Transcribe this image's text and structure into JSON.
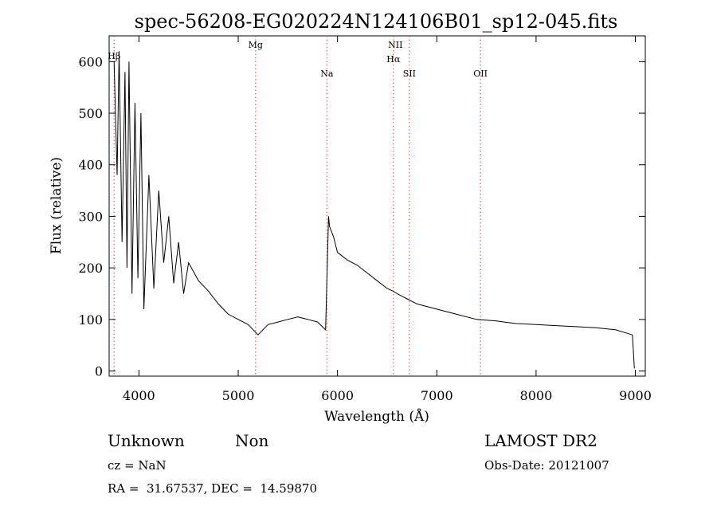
{
  "chart_data": {
    "type": "line",
    "title": "spec-56208-EG020224N124106B01_sp12-045.fits",
    "xlabel": "Wavelength (Å)",
    "ylabel": "Flux (relative)",
    "xlim": [
      3700,
      9100
    ],
    "ylim": [
      -10,
      650
    ],
    "xticks": [
      4000,
      5000,
      6000,
      7000,
      8000,
      9000
    ],
    "yticks": [
      0,
      100,
      200,
      300,
      400,
      500,
      600
    ],
    "grid": false,
    "series": [
      {
        "x": [
          3750,
          3780,
          3800,
          3830,
          3860,
          3880,
          3900,
          3930,
          3960,
          3990,
          4020,
          4050,
          4100,
          4150,
          4200,
          4250,
          4300,
          4350,
          4400,
          4450,
          4500,
          4600,
          4700,
          4800,
          4900,
          5000,
          5100,
          5200,
          5300,
          5400,
          5500,
          5600,
          5700,
          5800,
          5880,
          5910,
          5920,
          5940,
          5960,
          6000,
          6100,
          6200,
          6300,
          6400,
          6500,
          6560,
          6600,
          6700,
          6800,
          7000,
          7200,
          7400,
          7600,
          7800,
          8000,
          8200,
          8400,
          8600,
          8800,
          8970,
          8990
        ],
        "y": [
          600,
          380,
          620,
          250,
          580,
          200,
          600,
          150,
          520,
          180,
          500,
          120,
          380,
          160,
          350,
          210,
          300,
          170,
          250,
          150,
          210,
          175,
          155,
          130,
          110,
          100,
          90,
          70,
          90,
          95,
          100,
          105,
          100,
          95,
          80,
          300,
          280,
          270,
          260,
          230,
          215,
          205,
          190,
          175,
          160,
          155,
          150,
          140,
          130,
          120,
          110,
          100,
          97,
          92,
          90,
          88,
          86,
          84,
          80,
          70,
          5
        ]
      }
    ],
    "lines": [
      {
        "label": "Hβ",
        "x": 3750
      },
      {
        "label": "Mg",
        "x": 5175
      },
      {
        "label": "Na",
        "x": 5893
      },
      {
        "label": "NII",
        "x": 6583
      },
      {
        "label": "Hα",
        "x": 6563
      },
      {
        "label": "SII",
        "x": 6724
      },
      {
        "label": "OII",
        "x": 7440
      }
    ]
  },
  "info": {
    "type": "Unknown",
    "subtype": "Non",
    "survey": "LAMOST DR2",
    "cz": "cz = NaN",
    "obsdate": "Obs-Date: 20121007",
    "radec": "RA =  31.67537, DEC =  14.59870"
  }
}
